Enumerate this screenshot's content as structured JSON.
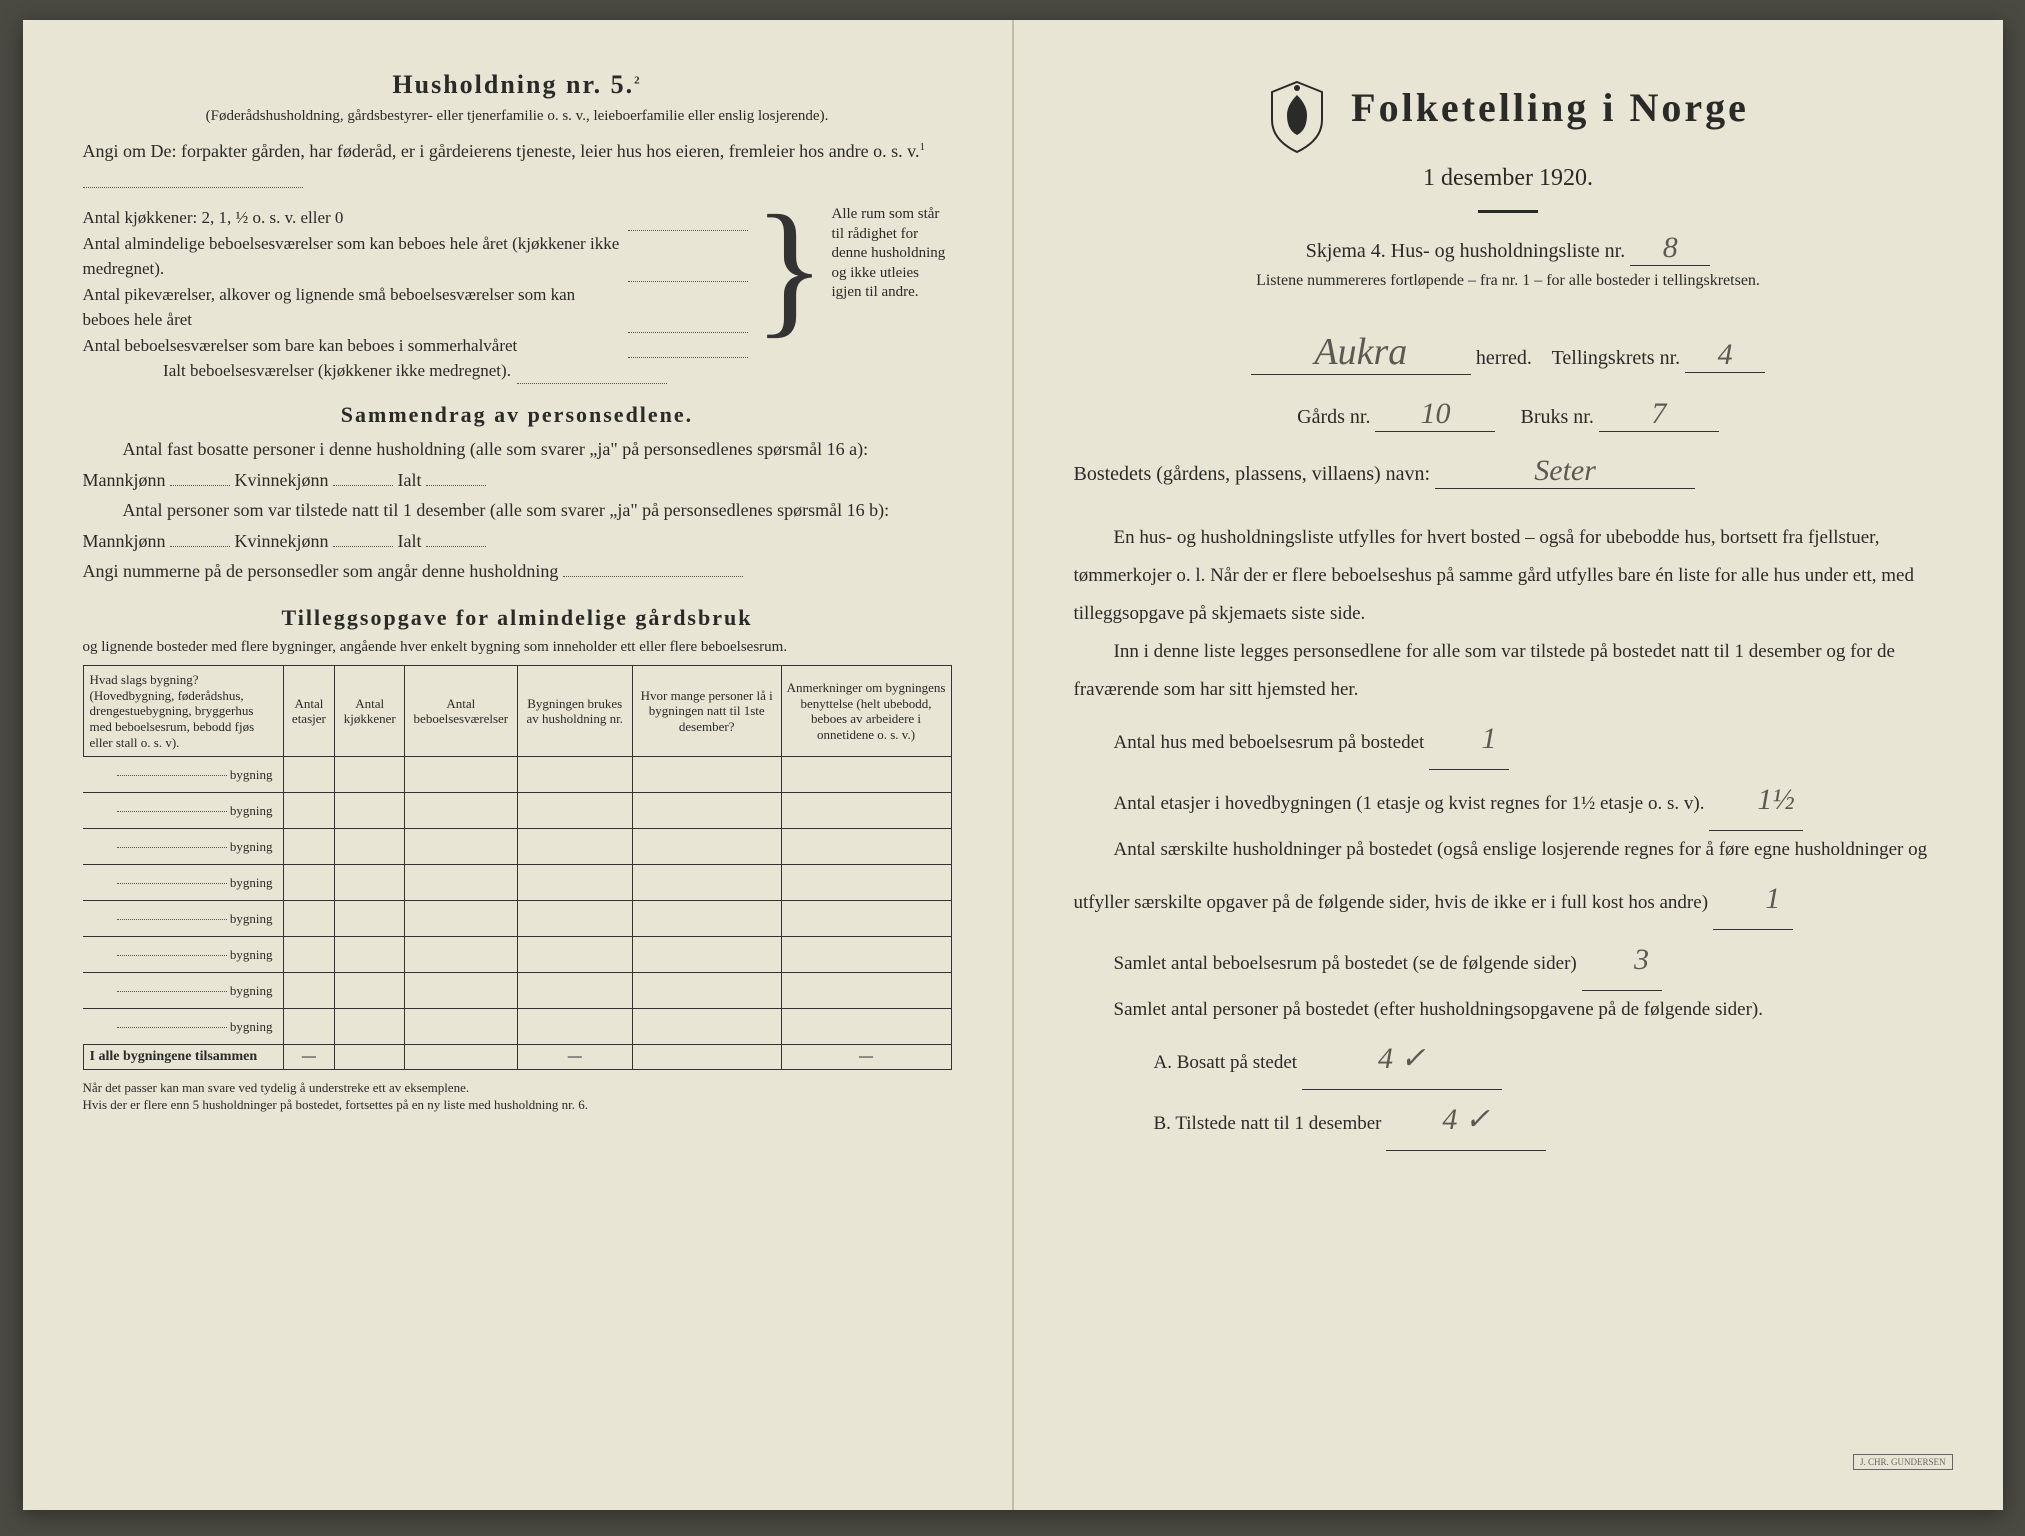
{
  "left": {
    "household_heading": "Husholdning nr. 5.",
    "household_sup": "2",
    "household_sub": "(Føderådshusholdning, gårdsbestyrer- eller tjenerfamilie o. s. v., leieboerfamilie eller enslig losjerende).",
    "angi_line": "Angi om De: forpakter gården, har føderåd, er i gårdeierens tjeneste, leier hus hos eieren, fremleier hos andre o. s. v.",
    "sup1": "1",
    "kitchen_line": "Antal kjøkkener: 2, 1, ½ o. s. v. eller 0",
    "brace_rows": [
      "Antal almindelige beboelsesværelser som kan beboes hele året (kjøkkener ikke medregnet).",
      "Antal pikeværelser, alkover og lignende små beboelsesværelser som kan beboes hele året",
      "Antal beboelsesværelser som bare kan beboes i sommerhalvåret"
    ],
    "brace_right": "Alle rum som står til rådighet for denne husholdning og ikke utleies igjen til andre.",
    "ialt_line": "Ialt beboelsesværelser (kjøkkener ikke medregnet).",
    "summary_heading": "Sammendrag av personsedlene.",
    "summary_p1a": "Antal fast bosatte personer i denne husholdning (alle som svarer „ja\" på personsedlenes spørsmål 16 a): Mannkjønn",
    "summary_p1_k": "Kvinnekjønn",
    "summary_p1_i": "Ialt",
    "summary_p2a": "Antal personer som var tilstede natt til 1 desember (alle som svarer „ja\" på personsedlenes spørsmål 16 b): Mannkjønn",
    "angi_nummer": "Angi nummerne på de personsedler som angår denne husholdning",
    "tillegg_heading": "Tilleggsopgave for almindelige gårdsbruk",
    "tillegg_sub": "og lignende bosteder med flere bygninger, angående hver enkelt bygning som inneholder ett eller flere beboelsesrum.",
    "table": {
      "headers": [
        "Hvad slags bygning?\n(Hovedbygning, føderådshus, drengestuebygning, bryggerhus med beboelsesrum, bebodd fjøs eller stall o. s. v).",
        "Antal etasjer",
        "Antal kjøkkener",
        "Antal beboelsesværelser",
        "Bygningen brukes av husholdning nr.",
        "Hvor mange personer lå i bygningen natt til 1ste desember?",
        "Anmerkninger om bygningens benyttelse (helt ubebodd, beboes av arbeidere i onnetidene o. s. v.)"
      ],
      "row_label": "bygning",
      "row_count": 8,
      "sum_label": "I alle bygningene tilsammen",
      "dash": "—"
    },
    "footer1": "Når det passer kan man svare ved tydelig å understreke ett av eksemplene.",
    "footer2": "Hvis der er flere enn 5 husholdninger på bostedet, fortsettes på en ny liste med husholdning nr. 6."
  },
  "right": {
    "main_title": "Folketelling i Norge",
    "subtitle": "1 desember 1920.",
    "skjema": "Skjema 4.  Hus- og husholdningsliste nr.",
    "skjema_nr": "8",
    "note": "Listene nummereres fortløpende – fra nr. 1 – for alle bosteder i tellingskretsen.",
    "herred_value": "Aukra",
    "herred_label": "herred.",
    "krets_label": "Tellingskrets nr.",
    "krets_value": "4",
    "gard_label": "Gårds nr.",
    "gard_value": "10",
    "bruk_label": "Bruks nr.",
    "bruk_value": "7",
    "bosted_label": "Bostedets (gårdens, plassens, villaens) navn:",
    "bosted_value": "Seter",
    "para1": "En hus- og husholdningsliste utfylles for hvert bosted – også for ubebodde hus, bortsett fra fjellstuer, tømmerkojer o. l. Når der er flere beboelseshus på samme gård utfylles bare én liste for alle hus under ett, med tilleggsopgave på skjemaets siste side.",
    "para2": "Inn i denne liste legges personsedlene for alle som var tilstede på bostedet natt til 1 desember og for de fraværende som har sitt hjemsted her.",
    "q1_label": "Antal hus med beboelsesrum på bostedet",
    "q1_value": "1",
    "q2_label_a": "Antal etasjer i hovedbygningen (1 etasje og kvist regnes for 1½ etasje o. s. v).",
    "q2_value": "1½",
    "q3_label": "Antal særskilte husholdninger på bostedet (også enslige losjerende regnes for å føre egne husholdninger og utfyller særskilte opgaver på de følgende sider, hvis de ikke er i full kost hos andre)",
    "q3_value": "1",
    "q4_label": "Samlet antal beboelsesrum på bostedet (se de følgende sider)",
    "q4_value": "3",
    "q5_label": "Samlet antal personer på bostedet (efter husholdningsopgavene på de følgende sider).",
    "qA_label": "A. Bosatt på stedet",
    "qA_value": "4 ✓",
    "qB_label": "B. Tilstede natt til 1 desember",
    "qB_value": "4 ✓",
    "stamp": "J. CHR. GUNDERSEN"
  },
  "colors": {
    "paper": "#e8e5d4",
    "ink": "#2a2a28",
    "hand": "#5a5a52"
  }
}
